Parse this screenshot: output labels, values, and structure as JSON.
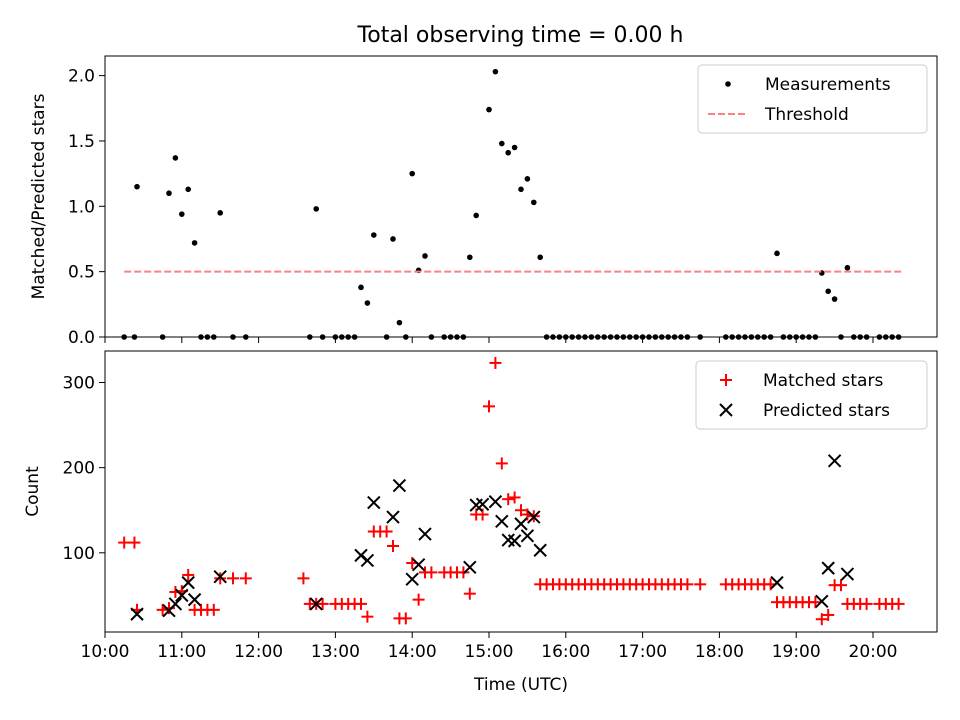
{
  "chart_data": [
    {
      "type": "scatter",
      "title": "Total observing time = 0.00 h",
      "ylabel": "Matched/Predicted stars",
      "xlabel": "",
      "xlim": [
        "10:00",
        "20:50"
      ],
      "ylim": [
        0,
        2.15
      ],
      "yticks": [
        0.0,
        0.5,
        1.0,
        1.5,
        2.0
      ],
      "ytick_labels": [
        "0.0",
        "0.5",
        "1.0",
        "1.5",
        "2.0"
      ],
      "legend": "top-right",
      "grid": false,
      "series": [
        {
          "name": "Measurements",
          "color": "#000000",
          "marker": "dot",
          "points": [
            [
              "10:15",
              0
            ],
            [
              "10:23",
              0
            ],
            [
              "10:25",
              1.15
            ],
            [
              "10:45",
              0
            ],
            [
              "10:50",
              1.1
            ],
            [
              "10:55",
              1.37
            ],
            [
              "11:00",
              0.94
            ],
            [
              "11:05",
              1.13
            ],
            [
              "11:10",
              0.72
            ],
            [
              "11:15",
              0
            ],
            [
              "11:20",
              0
            ],
            [
              "11:25",
              0
            ],
            [
              "11:30",
              0.95
            ],
            [
              "11:40",
              0
            ],
            [
              "11:50",
              0
            ],
            [
              "12:40",
              0
            ],
            [
              "12:45",
              0.98
            ],
            [
              "12:50",
              0
            ],
            [
              "13:00",
              0
            ],
            [
              "13:05",
              0
            ],
            [
              "13:10",
              0
            ],
            [
              "13:15",
              0
            ],
            [
              "13:20",
              0.38
            ],
            [
              "13:25",
              0.26
            ],
            [
              "13:30",
              0.78
            ],
            [
              "13:40",
              0
            ],
            [
              "13:45",
              0.75
            ],
            [
              "13:50",
              0.11
            ],
            [
              "13:55",
              0
            ],
            [
              "14:00",
              1.25
            ],
            [
              "14:05",
              0.51
            ],
            [
              "14:10",
              0.62
            ],
            [
              "14:15",
              0
            ],
            [
              "14:25",
              0
            ],
            [
              "14:30",
              0
            ],
            [
              "14:35",
              0
            ],
            [
              "14:40",
              0
            ],
            [
              "14:45",
              0.61
            ],
            [
              "14:50",
              0.93
            ],
            [
              "15:00",
              1.74
            ],
            [
              "15:05",
              2.03
            ],
            [
              "15:10",
              1.48
            ],
            [
              "15:15",
              1.41
            ],
            [
              "15:20",
              1.45
            ],
            [
              "15:25",
              1.13
            ],
            [
              "15:30",
              1.21
            ],
            [
              "15:35",
              1.03
            ],
            [
              "15:40",
              0.61
            ],
            [
              "15:45",
              0
            ],
            [
              "15:50",
              0
            ],
            [
              "15:55",
              0
            ],
            [
              "16:00",
              0
            ],
            [
              "16:05",
              0
            ],
            [
              "16:10",
              0
            ],
            [
              "16:15",
              0
            ],
            [
              "16:20",
              0
            ],
            [
              "16:25",
              0
            ],
            [
              "16:30",
              0
            ],
            [
              "16:35",
              0
            ],
            [
              "16:40",
              0
            ],
            [
              "16:45",
              0
            ],
            [
              "16:50",
              0
            ],
            [
              "16:55",
              0
            ],
            [
              "17:00",
              0
            ],
            [
              "17:05",
              0
            ],
            [
              "17:10",
              0
            ],
            [
              "17:15",
              0
            ],
            [
              "17:20",
              0
            ],
            [
              "17:25",
              0
            ],
            [
              "17:30",
              0
            ],
            [
              "17:35",
              0
            ],
            [
              "17:45",
              0
            ],
            [
              "18:05",
              0
            ],
            [
              "18:10",
              0
            ],
            [
              "18:15",
              0
            ],
            [
              "18:20",
              0
            ],
            [
              "18:25",
              0
            ],
            [
              "18:30",
              0
            ],
            [
              "18:35",
              0
            ],
            [
              "18:40",
              0
            ],
            [
              "18:45",
              0.64
            ],
            [
              "18:50",
              0
            ],
            [
              "18:55",
              0
            ],
            [
              "19:00",
              0
            ],
            [
              "19:05",
              0
            ],
            [
              "19:10",
              0
            ],
            [
              "19:15",
              0
            ],
            [
              "19:20",
              0.49
            ],
            [
              "19:25",
              0.35
            ],
            [
              "19:30",
              0.29
            ],
            [
              "19:35",
              0
            ],
            [
              "19:40",
              0.53
            ],
            [
              "19:45",
              0
            ],
            [
              "19:50",
              0
            ],
            [
              "19:55",
              0
            ],
            [
              "20:05",
              0
            ],
            [
              "20:10",
              0
            ],
            [
              "20:15",
              0
            ],
            [
              "20:20",
              0
            ]
          ]
        },
        {
          "name": "Threshold",
          "color": "#ff7f7f",
          "marker": "dashed-line",
          "points": [
            [
              "10:15",
              0.5
            ],
            [
              "20:22",
              0.5
            ]
          ]
        }
      ]
    },
    {
      "type": "scatter",
      "title": "",
      "ylabel": "Count",
      "xlabel": "Time (UTC)",
      "xlim": [
        "10:00",
        "20:50"
      ],
      "ylim": [
        7,
        337
      ],
      "yticks": [
        100,
        200,
        300
      ],
      "ytick_labels": [
        "100",
        "200",
        "300"
      ],
      "xticks": [
        "10:00",
        "11:00",
        "12:00",
        "13:00",
        "14:00",
        "15:00",
        "16:00",
        "17:00",
        "18:00",
        "19:00",
        "20:00"
      ],
      "xtick_labels": [
        "10:00",
        "11:00",
        "12:00",
        "13:00",
        "14:00",
        "15:00",
        "16:00",
        "17:00",
        "18:00",
        "19:00",
        "20:00"
      ],
      "legend": "top-right",
      "grid": false,
      "series": [
        {
          "name": "Matched stars",
          "color": "#ff0000",
          "marker": "plus",
          "points": [
            [
              "10:15",
              112
            ],
            [
              "10:23",
              112
            ],
            [
              "10:25",
              33
            ],
            [
              "10:45",
              33
            ],
            [
              "10:50",
              35
            ],
            [
              "10:55",
              54
            ],
            [
              "11:00",
              55
            ],
            [
              "11:05",
              74
            ],
            [
              "11:10",
              33
            ],
            [
              "11:15",
              33
            ],
            [
              "11:20",
              33
            ],
            [
              "11:25",
              33
            ],
            [
              "11:30",
              70
            ],
            [
              "11:40",
              70
            ],
            [
              "11:50",
              70
            ],
            [
              "12:35",
              70
            ],
            [
              "12:40",
              40
            ],
            [
              "12:45",
              40
            ],
            [
              "12:50",
              40
            ],
            [
              "13:00",
              40
            ],
            [
              "13:05",
              40
            ],
            [
              "13:10",
              40
            ],
            [
              "13:15",
              40
            ],
            [
              "13:20",
              40
            ],
            [
              "13:25",
              25
            ],
            [
              "13:30",
              125
            ],
            [
              "13:35",
              125
            ],
            [
              "13:40",
              125
            ],
            [
              "13:45",
              108
            ],
            [
              "13:50",
              23
            ],
            [
              "13:55",
              23
            ],
            [
              "14:00",
              88
            ],
            [
              "14:05",
              45
            ],
            [
              "14:10",
              77
            ],
            [
              "14:15",
              77
            ],
            [
              "14:25",
              77
            ],
            [
              "14:30",
              77
            ],
            [
              "14:35",
              77
            ],
            [
              "14:40",
              77
            ],
            [
              "14:45",
              52
            ],
            [
              "14:50",
              145
            ],
            [
              "14:55",
              145
            ],
            [
              "15:00",
              272
            ],
            [
              "15:05",
              323
            ],
            [
              "15:10",
              205
            ],
            [
              "15:15",
              163
            ],
            [
              "15:20",
              165
            ],
            [
              "15:25",
              150
            ],
            [
              "15:30",
              145
            ],
            [
              "15:35",
              143
            ],
            [
              "15:40",
              63
            ],
            [
              "15:45",
              63
            ],
            [
              "15:50",
              63
            ],
            [
              "15:55",
              63
            ],
            [
              "16:00",
              63
            ],
            [
              "16:05",
              63
            ],
            [
              "16:10",
              63
            ],
            [
              "16:15",
              63
            ],
            [
              "16:20",
              63
            ],
            [
              "16:25",
              63
            ],
            [
              "16:30",
              63
            ],
            [
              "16:35",
              63
            ],
            [
              "16:40",
              63
            ],
            [
              "16:45",
              63
            ],
            [
              "16:50",
              63
            ],
            [
              "16:55",
              63
            ],
            [
              "17:00",
              63
            ],
            [
              "17:05",
              63
            ],
            [
              "17:10",
              63
            ],
            [
              "17:15",
              63
            ],
            [
              "17:20",
              63
            ],
            [
              "17:25",
              63
            ],
            [
              "17:30",
              63
            ],
            [
              "17:35",
              63
            ],
            [
              "17:45",
              63
            ],
            [
              "18:05",
              63
            ],
            [
              "18:10",
              63
            ],
            [
              "18:15",
              63
            ],
            [
              "18:20",
              63
            ],
            [
              "18:25",
              63
            ],
            [
              "18:30",
              63
            ],
            [
              "18:35",
              63
            ],
            [
              "18:40",
              63
            ],
            [
              "18:45",
              42
            ],
            [
              "18:50",
              42
            ],
            [
              "18:55",
              42
            ],
            [
              "19:00",
              42
            ],
            [
              "19:05",
              42
            ],
            [
              "19:10",
              42
            ],
            [
              "19:15",
              42
            ],
            [
              "19:20",
              22
            ],
            [
              "19:25",
              27
            ],
            [
              "19:30",
              62
            ],
            [
              "19:35",
              62
            ],
            [
              "19:40",
              40
            ],
            [
              "19:45",
              40
            ],
            [
              "19:50",
              40
            ],
            [
              "19:55",
              40
            ],
            [
              "20:05",
              40
            ],
            [
              "20:10",
              40
            ],
            [
              "20:15",
              40
            ],
            [
              "20:20",
              40
            ]
          ]
        },
        {
          "name": "Predicted stars",
          "color": "#000000",
          "marker": "x",
          "points": [
            [
              "10:25",
              28
            ],
            [
              "10:50",
              32
            ],
            [
              "10:55",
              40
            ],
            [
              "11:00",
              50
            ],
            [
              "11:05",
              65
            ],
            [
              "11:10",
              45
            ],
            [
              "11:30",
              72
            ],
            [
              "12:45",
              40
            ],
            [
              "13:20",
              97
            ],
            [
              "13:25",
              91
            ],
            [
              "13:30",
              159
            ],
            [
              "13:45",
              142
            ],
            [
              "13:50",
              179
            ],
            [
              "14:00",
              69
            ],
            [
              "14:05",
              86
            ],
            [
              "14:10",
              122
            ],
            [
              "14:45",
              83
            ],
            [
              "14:50",
              156
            ],
            [
              "14:55",
              157
            ],
            [
              "15:05",
              160
            ],
            [
              "15:10",
              137
            ],
            [
              "15:15",
              115
            ],
            [
              "15:20",
              114
            ],
            [
              "15:25",
              134
            ],
            [
              "15:30",
              120
            ],
            [
              "15:35",
              142
            ],
            [
              "15:40",
              103
            ],
            [
              "18:45",
              65
            ],
            [
              "19:20",
              43
            ],
            [
              "19:25",
              82
            ],
            [
              "19:30",
              208
            ],
            [
              "19:40",
              75
            ]
          ]
        }
      ]
    }
  ]
}
